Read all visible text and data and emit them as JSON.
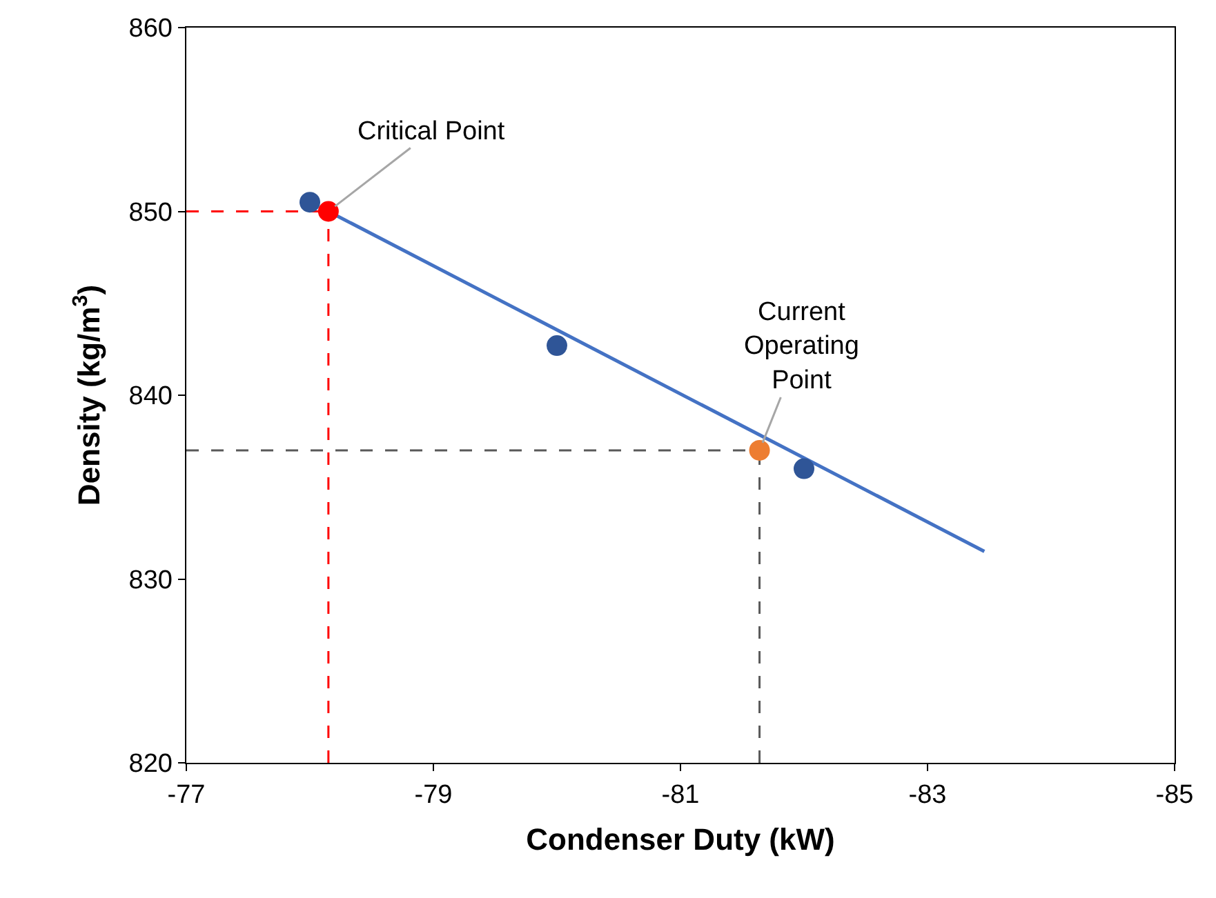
{
  "chart_data": {
    "type": "scatter",
    "xlabel": "Condenser Duty (kW)",
    "ylabel": "Density (kg/m$^{3}$)",
    "xlim": [
      -77,
      -85
    ],
    "xticks": [
      -77,
      -79,
      -81,
      -83,
      -85
    ],
    "ylim": [
      820,
      860
    ],
    "yticks": [
      820,
      830,
      840,
      850,
      860
    ],
    "grid": false,
    "series": [
      {
        "type": "line",
        "color": "#4472c4",
        "x": [
          -78.15,
          -83.46
        ],
        "values": [
          850,
          831.5
        ],
        "marker": "none",
        "line_style": "solid"
      },
      {
        "color": "#2f5597",
        "x": [
          -78.0,
          -80.0,
          -82.0
        ],
        "values": [
          850.5,
          842.7,
          836.0
        ],
        "marker": "circle"
      },
      {
        "color": "#ff0000",
        "x": [
          -78.15
        ],
        "values": [
          850
        ],
        "marker": "circle"
      },
      {
        "color": "#ed7d31",
        "x": [
          -81.64
        ],
        "values": [
          837.0
        ],
        "marker": "circle"
      }
    ],
    "ref_lines": [
      {
        "axis": "y",
        "value": 850,
        "color": "#ff0000",
        "line_style": "dashed"
      },
      {
        "axis": "x",
        "value": -78.15,
        "color": "#ff0000",
        "line_style": "dashed"
      },
      {
        "axis": "y",
        "value": 837.0,
        "color": "#595959",
        "line_style": "dashed"
      },
      {
        "axis": "x",
        "value": -81.64,
        "color": "#595959",
        "line_style": "dashed"
      }
    ],
    "annotations": [
      {
        "text": "Critical Point",
        "x": -78.15,
        "y": 850
      },
      {
        "text": "Current Operating Point",
        "x": -81.64,
        "y": 837.0
      }
    ]
  }
}
